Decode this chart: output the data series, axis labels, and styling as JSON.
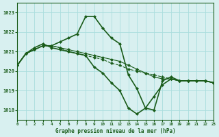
{
  "title": "Graphe pression niveau de la mer (hPa)",
  "bg_color": "#d8f0f0",
  "grid_color": "#aadddd",
  "line_color": "#1a5c1a",
  "xlim": [
    0,
    23
  ],
  "ylim": [
    1017.5,
    1023.5
  ],
  "yticks": [
    1018,
    1019,
    1020,
    1021,
    1022,
    1023
  ],
  "xticks": [
    0,
    1,
    2,
    3,
    4,
    5,
    6,
    7,
    8,
    9,
    10,
    11,
    12,
    13,
    14,
    15,
    16,
    17,
    18,
    19,
    20,
    21,
    22,
    23
  ],
  "series": [
    [
      1020.3,
      1020.9,
      1021.1,
      1021.3,
      1021.3,
      1021.5,
      1021.7,
      1021.9,
      1022.8,
      1022.8,
      1022.2,
      1021.7,
      1021.4,
      1019.8,
      1019.1,
      1018.1,
      1018.0,
      1019.5,
      1019.7,
      1019.5,
      1019.5,
      1019.5,
      1019.5,
      1019.4
    ],
    [
      1020.3,
      1020.9,
      1021.1,
      1021.3,
      1021.3,
      1021.2,
      1021.1,
      1021.0,
      1020.9,
      1020.8,
      1020.7,
      1020.6,
      1020.5,
      1020.3,
      1020.1,
      1019.9,
      1019.7,
      1019.6,
      1019.6,
      1019.5,
      1019.5,
      1019.5,
      1019.5,
      1019.4
    ],
    [
      1020.3,
      1020.9,
      1021.1,
      1021.3,
      1021.3,
      1021.2,
      1021.0,
      1020.9,
      1020.8,
      1020.7,
      1020.6,
      1020.4,
      1020.3,
      1020.1,
      1020.0,
      1019.9,
      1019.8,
      1019.7,
      1019.6,
      1019.5,
      1019.5,
      1019.5,
      1019.5,
      1019.4
    ],
    [
      1020.3,
      1020.9,
      1021.2,
      1021.4,
      1021.2,
      1021.1,
      1021.0,
      1020.9,
      1020.8,
      1020.2,
      1019.9,
      1019.4,
      1019.0,
      1018.1,
      1017.8,
      1018.1,
      1018.7,
      1019.3,
      1019.6,
      1019.5,
      1019.5,
      1019.5,
      1019.5,
      1019.4
    ]
  ],
  "linestyles": [
    "-",
    "-",
    "--",
    "-"
  ],
  "linewidths": [
    1.2,
    0.8,
    0.8,
    1.2
  ]
}
